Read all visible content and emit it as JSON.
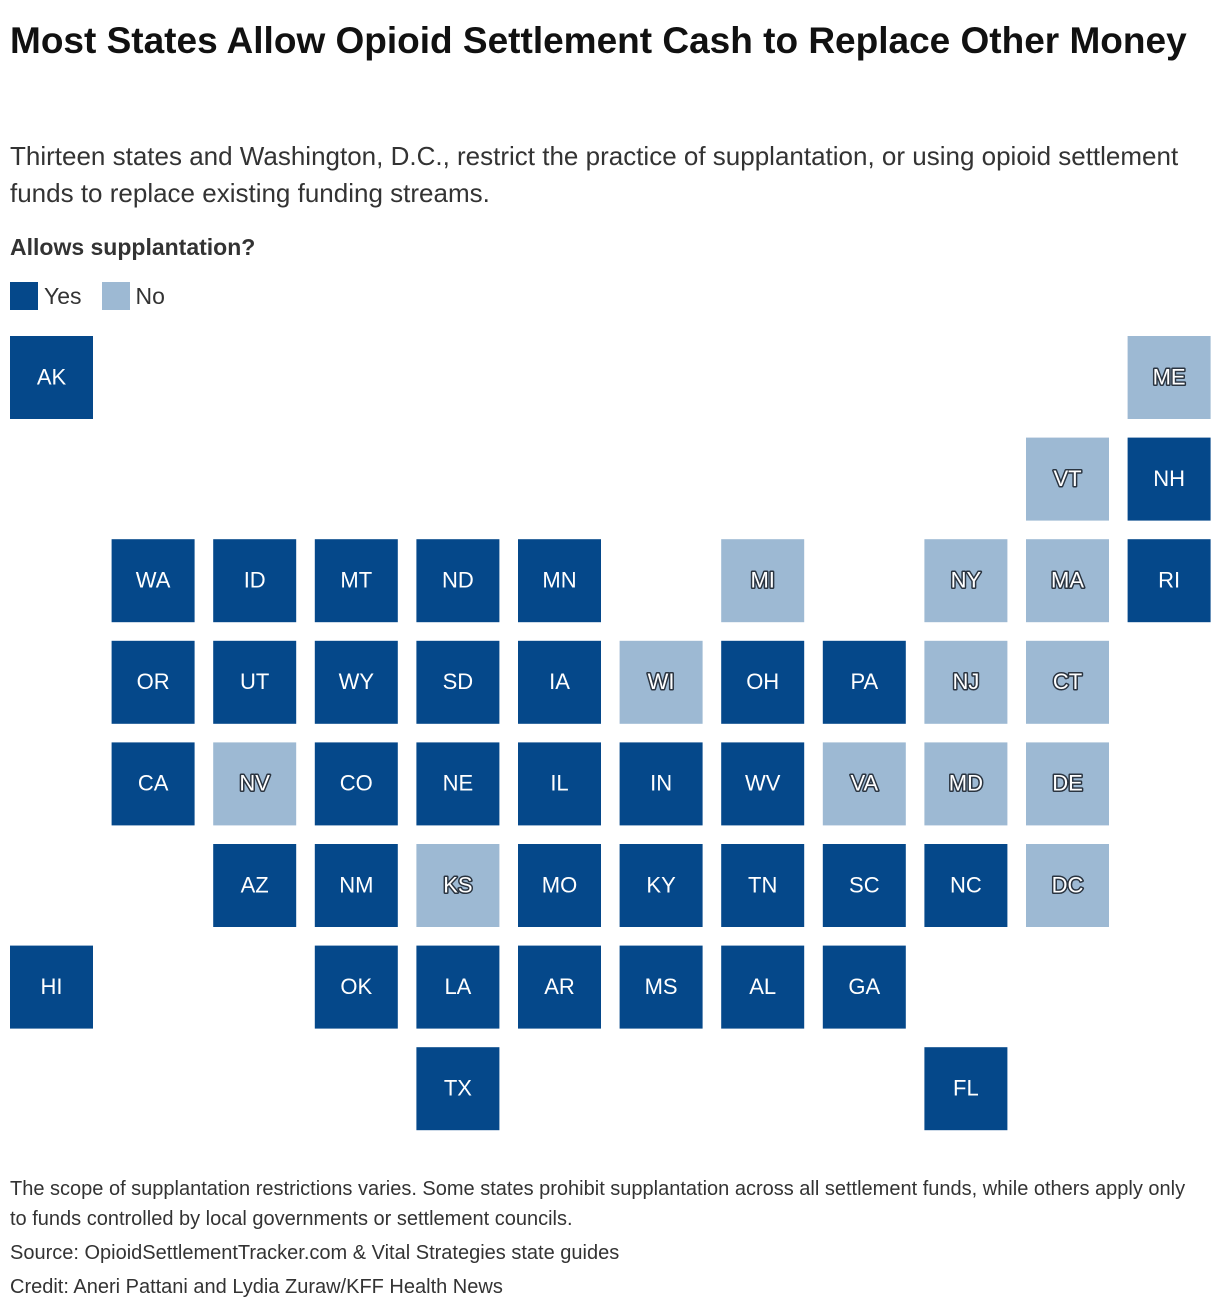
{
  "header": {
    "title": "Most States Allow Opioid Settlement Cash to Replace Other Money",
    "subtitle": "Thirteen states and Washington, D.C., restrict the practice of supplantation, or using opioid settlement funds to replace existing funding streams."
  },
  "legend": {
    "title": "Allows supplantation?",
    "items": [
      {
        "label": "Yes",
        "color": "#05488a"
      },
      {
        "label": "No",
        "color": "#9db9d3"
      }
    ]
  },
  "states": [
    {
      "label": "AK",
      "allows": "Yes"
    },
    {
      "label": "ME",
      "allows": "No"
    },
    {
      "label": "VT",
      "allows": "No"
    },
    {
      "label": "NH",
      "allows": "Yes"
    },
    {
      "label": "WA",
      "allows": "Yes"
    },
    {
      "label": "ID",
      "allows": "Yes"
    },
    {
      "label": "MT",
      "allows": "Yes"
    },
    {
      "label": "ND",
      "allows": "Yes"
    },
    {
      "label": "MN",
      "allows": "Yes"
    },
    {
      "label": "MI",
      "allows": "No"
    },
    {
      "label": "NY",
      "allows": "No"
    },
    {
      "label": "MA",
      "allows": "No"
    },
    {
      "label": "RI",
      "allows": "Yes"
    },
    {
      "label": "OR",
      "allows": "Yes"
    },
    {
      "label": "UT",
      "allows": "Yes"
    },
    {
      "label": "WY",
      "allows": "Yes"
    },
    {
      "label": "SD",
      "allows": "Yes"
    },
    {
      "label": "IA",
      "allows": "Yes"
    },
    {
      "label": "WI",
      "allows": "No"
    },
    {
      "label": "OH",
      "allows": "Yes"
    },
    {
      "label": "PA",
      "allows": "Yes"
    },
    {
      "label": "NJ",
      "allows": "No"
    },
    {
      "label": "CT",
      "allows": "No"
    },
    {
      "label": "CA",
      "allows": "Yes"
    },
    {
      "label": "NV",
      "allows": "No"
    },
    {
      "label": "CO",
      "allows": "Yes"
    },
    {
      "label": "NE",
      "allows": "Yes"
    },
    {
      "label": "IL",
      "allows": "Yes"
    },
    {
      "label": "IN",
      "allows": "Yes"
    },
    {
      "label": "WV",
      "allows": "Yes"
    },
    {
      "label": "VA",
      "allows": "No"
    },
    {
      "label": "MD",
      "allows": "No"
    },
    {
      "label": "DE",
      "allows": "No"
    },
    {
      "label": "AZ",
      "allows": "Yes"
    },
    {
      "label": "NM",
      "allows": "Yes"
    },
    {
      "label": "KS",
      "allows": "No"
    },
    {
      "label": "MO",
      "allows": "Yes"
    },
    {
      "label": "KY",
      "allows": "Yes"
    },
    {
      "label": "TN",
      "allows": "Yes"
    },
    {
      "label": "SC",
      "allows": "Yes"
    },
    {
      "label": "NC",
      "allows": "Yes"
    },
    {
      "label": "DC",
      "allows": "No"
    },
    {
      "label": "HI",
      "allows": "Yes"
    },
    {
      "label": "OK",
      "allows": "Yes"
    },
    {
      "label": "LA",
      "allows": "Yes"
    },
    {
      "label": "AR",
      "allows": "Yes"
    },
    {
      "label": "MS",
      "allows": "Yes"
    },
    {
      "label": "AL",
      "allows": "Yes"
    },
    {
      "label": "GA",
      "allows": "Yes"
    },
    {
      "label": "TX",
      "allows": "Yes"
    },
    {
      "label": "FL",
      "allows": "Yes"
    }
  ],
  "footer": {
    "note": "The scope of supplantation restrictions varies. Some states prohibit supplantation across all settlement funds, while others apply only to funds controlled by local governments or settlement councils.",
    "source": "Source: OpioidSettlementTracker.com & Vital Strategies state guides",
    "credit": "Credit: Aneri Pattani and Lydia Zuraw/KFF Health News"
  }
}
